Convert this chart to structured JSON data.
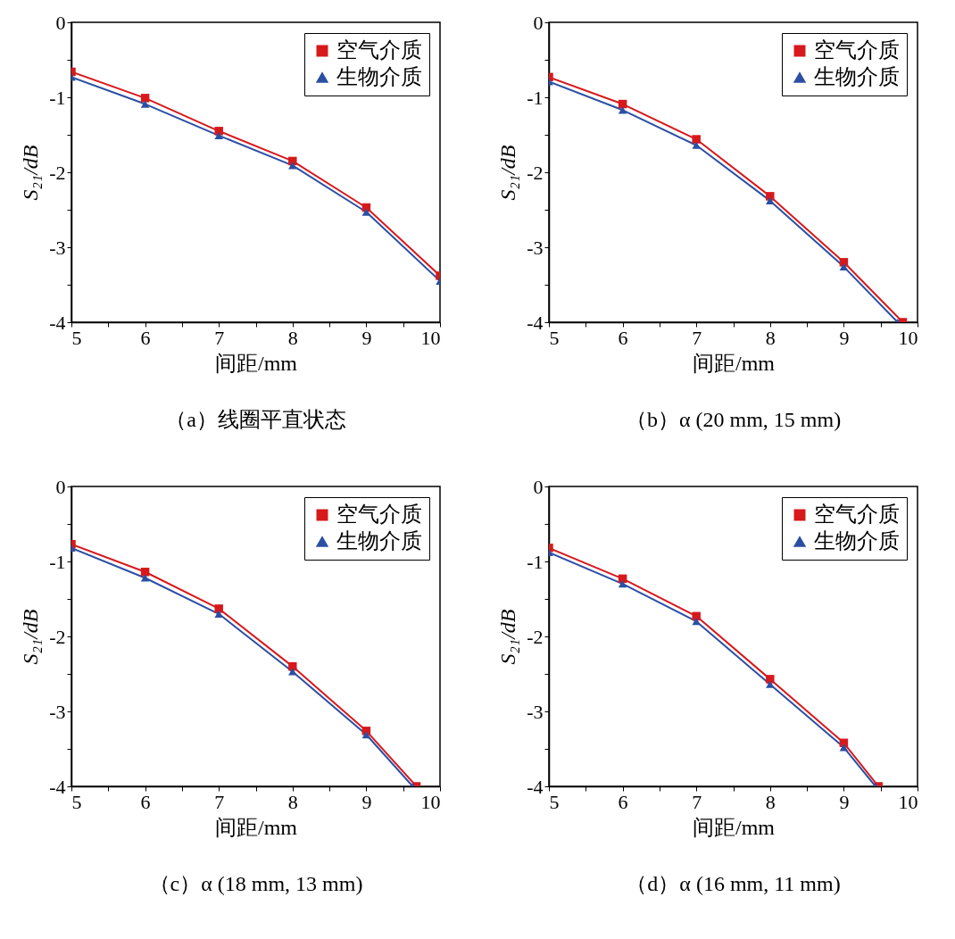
{
  "chart_data": [
    {
      "type": "line",
      "title": "（a）线圈平直状态",
      "xlabel": "间距/mm",
      "ylabel": "S₂₁/dB",
      "xlim": [
        5,
        10
      ],
      "ylim": [
        -4,
        0
      ],
      "xticks": [
        5,
        {
          "value": 5.5,
          "label": null
        },
        6,
        {
          "value": 6.5,
          "label": null
        },
        7,
        {
          "value": 7.5,
          "label": null
        },
        8,
        {
          "value": 8.5,
          "label": null
        },
        9,
        {
          "value": 9.5,
          "label": null
        },
        10
      ],
      "yticks": [
        -4,
        {
          "value": -3.5,
          "label": null
        },
        -3,
        {
          "value": -2.5,
          "label": null
        },
        -2,
        {
          "value": -1.5,
          "label": null
        },
        -1,
        {
          "value": -0.5,
          "label": null
        },
        0
      ],
      "legend": "top right",
      "series": [
        {
          "name": "空气介质",
          "color": "#d7191c",
          "marker": "square",
          "x": [
            5,
            6,
            7,
            8,
            9,
            10
          ],
          "values": [
            -0.66,
            -1.01,
            -1.45,
            -1.85,
            -2.47,
            -3.38
          ]
        },
        {
          "name": "生物介质",
          "color": "#2b4fa3",
          "marker": "triangle",
          "x": [
            5,
            6,
            7,
            8,
            9,
            10
          ],
          "values": [
            -0.73,
            -1.09,
            -1.51,
            -1.91,
            -2.53,
            -3.45
          ]
        }
      ]
    },
    {
      "type": "line",
      "title": "（b）α (20 mm, 15 mm)",
      "xlabel": "间距/mm",
      "ylabel": "S₂₁/dB",
      "xlim": [
        5,
        10
      ],
      "ylim": [
        -4,
        0
      ],
      "xticks": [
        5,
        {
          "value": 5.5,
          "label": null
        },
        6,
        {
          "value": 6.5,
          "label": null
        },
        7,
        {
          "value": 7.5,
          "label": null
        },
        8,
        {
          "value": 8.5,
          "label": null
        },
        9,
        {
          "value": 9.5,
          "label": null
        },
        10
      ],
      "yticks": [
        -4,
        {
          "value": -3.5,
          "label": null
        },
        -3,
        {
          "value": -2.5,
          "label": null
        },
        -2,
        {
          "value": -1.5,
          "label": null
        },
        -1,
        {
          "value": -0.5,
          "label": null
        },
        0
      ],
      "legend": "top right",
      "series": [
        {
          "name": "空气介质",
          "color": "#d7191c",
          "marker": "square",
          "x": [
            5,
            6,
            7,
            8,
            9,
            9.8
          ],
          "values": [
            -0.73,
            -1.09,
            -1.56,
            -2.32,
            -3.2,
            -4
          ]
        },
        {
          "name": "生物介质",
          "color": "#2b4fa3",
          "marker": "triangle",
          "x": [
            5,
            6,
            7,
            8,
            9,
            9.73
          ],
          "values": [
            -0.79,
            -1.17,
            -1.64,
            -2.38,
            -3.26,
            -4
          ]
        }
      ]
    },
    {
      "type": "line",
      "title": "（c）α (18 mm, 13 mm)",
      "xlabel": "间距/mm",
      "ylabel": "S₂₁/dB",
      "xlim": [
        5,
        10
      ],
      "ylim": [
        -4,
        0
      ],
      "xticks": [
        5,
        {
          "value": 5.5,
          "label": null
        },
        6,
        {
          "value": 6.5,
          "label": null
        },
        7,
        {
          "value": 7.5,
          "label": null
        },
        8,
        {
          "value": 8.5,
          "label": null
        },
        9,
        {
          "value": 9.5,
          "label": null
        },
        10
      ],
      "yticks": [
        -4,
        {
          "value": -3.5,
          "label": null
        },
        -3,
        {
          "value": -2.5,
          "label": null
        },
        -2,
        {
          "value": -1.5,
          "label": null
        },
        -1,
        {
          "value": -0.5,
          "label": null
        },
        0
      ],
      "legend": "top right",
      "series": [
        {
          "name": "空气介质",
          "color": "#d7191c",
          "marker": "square",
          "x": [
            5,
            6,
            7,
            8,
            9,
            9.68
          ],
          "values": [
            -0.77,
            -1.14,
            -1.63,
            -2.4,
            -3.26,
            -4
          ]
        },
        {
          "name": "生物介质",
          "color": "#2b4fa3",
          "marker": "triangle",
          "x": [
            5,
            6,
            7,
            8,
            9,
            9.63
          ],
          "values": [
            -0.82,
            -1.22,
            -1.7,
            -2.47,
            -3.31,
            -4
          ]
        }
      ]
    },
    {
      "type": "line",
      "title": "（d）α (16 mm, 11 mm)",
      "xlabel": "间距/mm",
      "ylabel": "S₂₁/dB",
      "xlim": [
        5,
        10
      ],
      "ylim": [
        -4,
        0
      ],
      "xticks": [
        5,
        {
          "value": 5.5,
          "label": null
        },
        6,
        {
          "value": 6.5,
          "label": null
        },
        7,
        {
          "value": 7.5,
          "label": null
        },
        8,
        {
          "value": 8.5,
          "label": null
        },
        9,
        {
          "value": 9.5,
          "label": null
        },
        10
      ],
      "yticks": [
        -4,
        {
          "value": -3.5,
          "label": null
        },
        -3,
        {
          "value": -2.5,
          "label": null
        },
        -2,
        {
          "value": -1.5,
          "label": null
        },
        -1,
        {
          "value": -0.5,
          "label": null
        },
        0
      ],
      "legend": "top right",
      "series": [
        {
          "name": "空气介质",
          "color": "#d7191c",
          "marker": "square",
          "x": [
            5,
            6,
            7,
            8,
            9,
            9.47
          ],
          "values": [
            -0.82,
            -1.23,
            -1.73,
            -2.57,
            -3.42,
            -4
          ]
        },
        {
          "name": "生物介质",
          "color": "#2b4fa3",
          "marker": "triangle",
          "x": [
            5,
            6,
            7,
            8,
            9,
            9.43
          ],
          "values": [
            -0.88,
            -1.3,
            -1.8,
            -2.64,
            -3.48,
            -4
          ]
        }
      ]
    }
  ]
}
